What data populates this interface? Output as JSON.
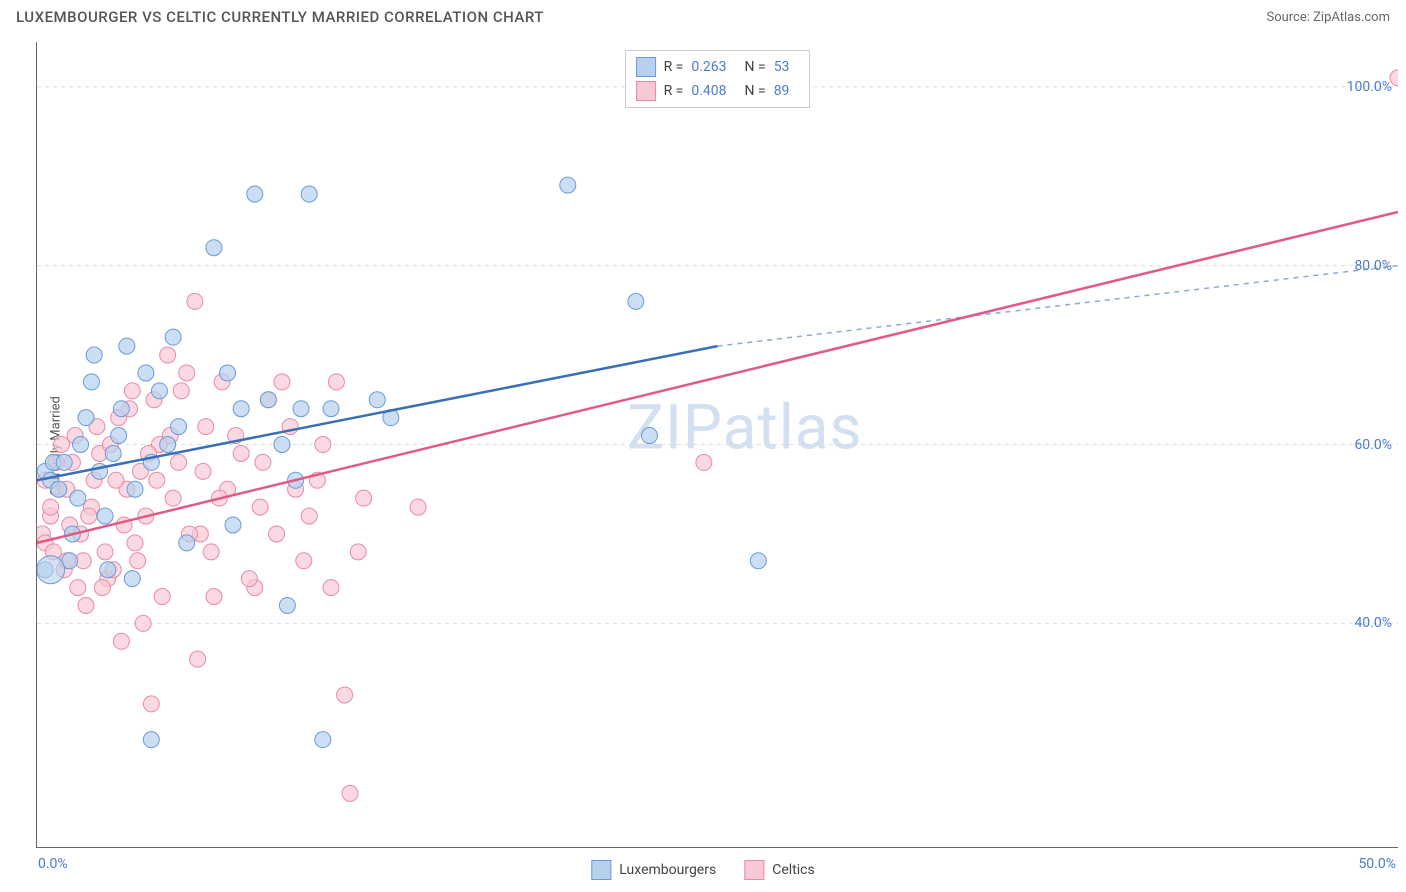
{
  "title": "LUXEMBOURGER VS CELTIC CURRENTLY MARRIED CORRELATION CHART",
  "source": "Source: ZipAtlas.com",
  "ylabel": "Currently Married",
  "watermark": "ZIPatlas",
  "xlim": [
    0,
    50
  ],
  "ylim": [
    15,
    105
  ],
  "x_ticks": [
    {
      "val": 0,
      "label": "0.0%"
    },
    {
      "val": 50,
      "label": "50.0%"
    }
  ],
  "y_ticks": [
    {
      "val": 40,
      "label": "40.0%"
    },
    {
      "val": 60,
      "label": "60.0%"
    },
    {
      "val": 80,
      "label": "80.0%"
    },
    {
      "val": 100,
      "label": "100.0%"
    }
  ],
  "gridlines_y": [
    40,
    60,
    80,
    100
  ],
  "series": [
    {
      "name": "Luxembourgers",
      "fill": "#b7d0ee",
      "stroke": "#6a9bd8",
      "line_color": "#3a6fb5",
      "dash_color": "#8aa8d8",
      "R": "0.263",
      "N": "53",
      "marker_r": 8,
      "points": [
        [
          0.3,
          57
        ],
        [
          0.5,
          56
        ],
        [
          0.6,
          58
        ],
        [
          0.8,
          55
        ],
        [
          1.0,
          58
        ],
        [
          1.2,
          47
        ],
        [
          1.3,
          50
        ],
        [
          1.5,
          54
        ],
        [
          1.6,
          60
        ],
        [
          1.8,
          63
        ],
        [
          2.0,
          67
        ],
        [
          2.1,
          70
        ],
        [
          2.3,
          57
        ],
        [
          2.5,
          52
        ],
        [
          2.6,
          46
        ],
        [
          2.8,
          59
        ],
        [
          3.0,
          61
        ],
        [
          3.1,
          64
        ],
        [
          3.3,
          71
        ],
        [
          3.5,
          45
        ],
        [
          3.6,
          55
        ],
        [
          4.0,
          68
        ],
        [
          4.2,
          58
        ],
        [
          4.5,
          66
        ],
        [
          4.8,
          60
        ],
        [
          5.0,
          72
        ],
        [
          5.2,
          62
        ],
        [
          5.5,
          49
        ],
        [
          6.5,
          82
        ],
        [
          7.0,
          68
        ],
        [
          7.2,
          51
        ],
        [
          7.5,
          64
        ],
        [
          8.0,
          88
        ],
        [
          8.5,
          65
        ],
        [
          9.0,
          60
        ],
        [
          9.2,
          42
        ],
        [
          9.5,
          56
        ],
        [
          9.7,
          64
        ],
        [
          10.0,
          88
        ],
        [
          10.5,
          27
        ],
        [
          10.8,
          64
        ],
        [
          12.5,
          65
        ],
        [
          13.0,
          63
        ],
        [
          19.5,
          89
        ],
        [
          22.0,
          76
        ],
        [
          22.5,
          61
        ],
        [
          26.5,
          47
        ],
        [
          4.2,
          27
        ],
        [
          0.3,
          46
        ]
      ],
      "trend": {
        "x1": 0,
        "y1": 56,
        "x2": 25,
        "y2": 71,
        "ext_x": 50,
        "ext_y": 80
      },
      "extra_large": [
        [
          0.5,
          46,
          14
        ]
      ]
    },
    {
      "name": "Celtics",
      "fill": "#f8c9d5",
      "stroke": "#e88aa5",
      "line_color": "#e05a84",
      "R": "0.408",
      "N": "89",
      "marker_r": 8,
      "points": [
        [
          0.2,
          50
        ],
        [
          0.3,
          49
        ],
        [
          0.5,
          52
        ],
        [
          0.6,
          48
        ],
        [
          0.8,
          55
        ],
        [
          1.0,
          46
        ],
        [
          1.1,
          47
        ],
        [
          1.2,
          51
        ],
        [
          1.3,
          58
        ],
        [
          1.5,
          44
        ],
        [
          1.6,
          50
        ],
        [
          1.8,
          42
        ],
        [
          2.0,
          53
        ],
        [
          2.1,
          56
        ],
        [
          2.3,
          59
        ],
        [
          2.5,
          48
        ],
        [
          2.6,
          45
        ],
        [
          2.8,
          46
        ],
        [
          3.0,
          63
        ],
        [
          3.1,
          38
        ],
        [
          3.3,
          55
        ],
        [
          3.5,
          66
        ],
        [
          3.6,
          49
        ],
        [
          3.8,
          57
        ],
        [
          4.0,
          52
        ],
        [
          4.2,
          31
        ],
        [
          4.3,
          65
        ],
        [
          4.5,
          60
        ],
        [
          4.8,
          70
        ],
        [
          5.0,
          54
        ],
        [
          5.2,
          58
        ],
        [
          5.5,
          68
        ],
        [
          5.8,
          76
        ],
        [
          6.0,
          50
        ],
        [
          6.2,
          62
        ],
        [
          6.5,
          43
        ],
        [
          6.8,
          67
        ],
        [
          7.0,
          55
        ],
        [
          7.5,
          59
        ],
        [
          8.0,
          44
        ],
        [
          8.2,
          53
        ],
        [
          8.5,
          65
        ],
        [
          9.0,
          67
        ],
        [
          9.5,
          55
        ],
        [
          10.0,
          52
        ],
        [
          10.5,
          60
        ],
        [
          11.0,
          67
        ],
        [
          11.5,
          21
        ],
        [
          12.0,
          54
        ],
        [
          14.0,
          53
        ],
        [
          24.5,
          58
        ],
        [
          50.0,
          101
        ],
        [
          0.3,
          56
        ],
        [
          0.5,
          53
        ],
        [
          0.7,
          58
        ],
        [
          0.9,
          60
        ],
        [
          1.1,
          55
        ],
        [
          1.4,
          61
        ],
        [
          1.7,
          47
        ],
        [
          1.9,
          52
        ],
        [
          2.2,
          62
        ],
        [
          2.4,
          44
        ],
        [
          2.7,
          60
        ],
        [
          2.9,
          56
        ],
        [
          3.2,
          51
        ],
        [
          3.4,
          64
        ],
        [
          3.7,
          47
        ],
        [
          3.9,
          40
        ],
        [
          4.1,
          59
        ],
        [
          4.4,
          56
        ],
        [
          4.6,
          43
        ],
        [
          4.9,
          61
        ],
        [
          5.3,
          66
        ],
        [
          5.6,
          50
        ],
        [
          5.9,
          36
        ],
        [
          6.1,
          57
        ],
        [
          6.4,
          48
        ],
        [
          6.7,
          54
        ],
        [
          7.3,
          61
        ],
        [
          7.8,
          45
        ],
        [
          8.3,
          58
        ],
        [
          8.8,
          50
        ],
        [
          9.3,
          62
        ],
        [
          9.8,
          47
        ],
        [
          10.3,
          56
        ],
        [
          10.8,
          44
        ],
        [
          11.3,
          32
        ],
        [
          11.8,
          48
        ]
      ],
      "trend": {
        "x1": 0,
        "y1": 49,
        "x2": 50,
        "y2": 86
      }
    }
  ],
  "legend": {
    "series1": "Luxembourgers",
    "series2": "Celtics"
  }
}
